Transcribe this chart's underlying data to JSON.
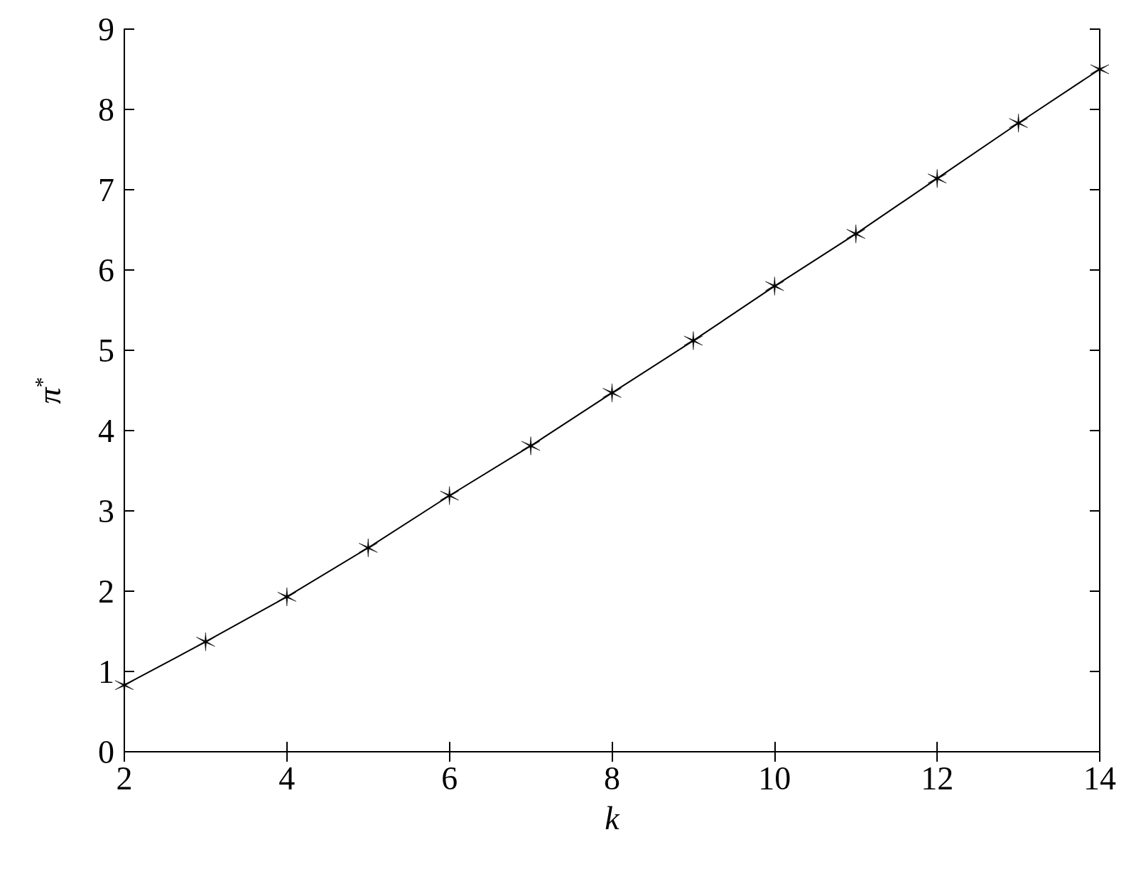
{
  "chart_data": {
    "type": "line",
    "xlabel": "k",
    "ylabel": "π$^{*}$",
    "x": [
      2,
      3,
      4,
      5,
      6,
      7,
      8,
      9,
      10,
      11,
      12,
      13,
      14
    ],
    "series": [
      {
        "color": "#000000",
        "values": [
          0.83,
          1.37,
          1.93,
          2.54,
          3.19,
          3.81,
          4.47,
          5.12,
          5.8,
          6.45,
          7.14,
          7.83,
          8.5
        ]
      }
    ],
    "xlim": [
      2,
      14
    ],
    "xticks": [
      2,
      4,
      6,
      8,
      10,
      12,
      14
    ],
    "ylim": [
      0,
      9
    ],
    "yticks": [
      0,
      1,
      2,
      3,
      4,
      5,
      6,
      7,
      8,
      9
    ],
    "grid": false,
    "marker": "cross",
    "line_style": "solid"
  }
}
